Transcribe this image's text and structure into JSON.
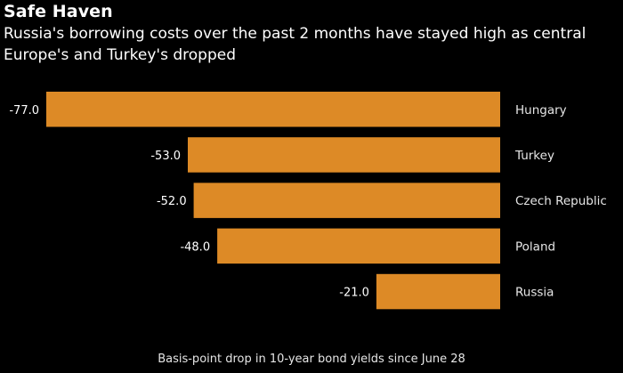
{
  "title": "Safe Haven",
  "subtitle": "Russia's borrowing costs over the past 2 months have stayed high as central Europe's and Turkey's dropped",
  "footer": "Basis-point drop in 10-year bond yields since June 28",
  "colors": {
    "bar": "#dd8a26",
    "background": "#000000",
    "text": "#ffffff",
    "label": "#e6e6e6"
  },
  "chart_data": {
    "type": "bar",
    "orientation": "horizontal",
    "title": "Safe Haven",
    "subtitle": "Russia's borrowing costs over the past 2 months have stayed high as central Europe's and Turkey's dropped",
    "xlabel": "Basis-point drop in 10-year bond yields since June 28",
    "ylabel": "",
    "categories": [
      "Hungary",
      "Turkey",
      "Czech Republic",
      "Poland",
      "Russia"
    ],
    "values": [
      -77.0,
      -53.0,
      -52.0,
      -48.0,
      -21.0
    ],
    "value_labels": [
      "-77.0",
      "-53.0",
      "-52.0",
      "-48.0",
      "-21.0"
    ],
    "xlim": [
      -77,
      0
    ],
    "grid": false,
    "legend": "none"
  }
}
